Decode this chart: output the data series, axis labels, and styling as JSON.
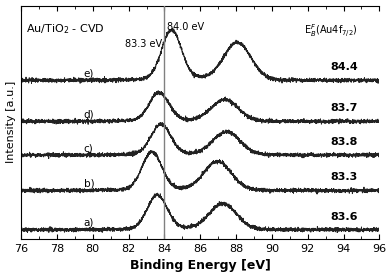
{
  "title": "Au/TiO₂ - CVD",
  "xlabel": "Binding Energy [eV]",
  "ylabel": "Intensity [a.u.]",
  "xmin": 76,
  "xmax": 96,
  "vline": 84.0,
  "vline_label": "84.0 eV",
  "vline_label83": "83.3 eV",
  "eb_header": "E$_B^F$(Au4f$_{7/2}$)",
  "spectra_labels": [
    "e)",
    "d)",
    "c)",
    "b)",
    "a)"
  ],
  "eb_values": [
    "84.4",
    "83.7",
    "83.8",
    "83.3",
    "83.6"
  ],
  "offsets": [
    4.0,
    2.9,
    2.0,
    1.05,
    0.0
  ],
  "peak_positions": [
    84.4,
    83.7,
    83.8,
    83.3,
    83.6
  ],
  "spin_orbit_split": 3.67,
  "amplitudes": [
    1.3,
    0.75,
    0.8,
    1.0,
    0.9
  ],
  "noise_level": 0.025,
  "line_color": "#222222",
  "tick_every": 2,
  "xticks": [
    76,
    78,
    80,
    82,
    84,
    86,
    88,
    90,
    92,
    94,
    96
  ]
}
